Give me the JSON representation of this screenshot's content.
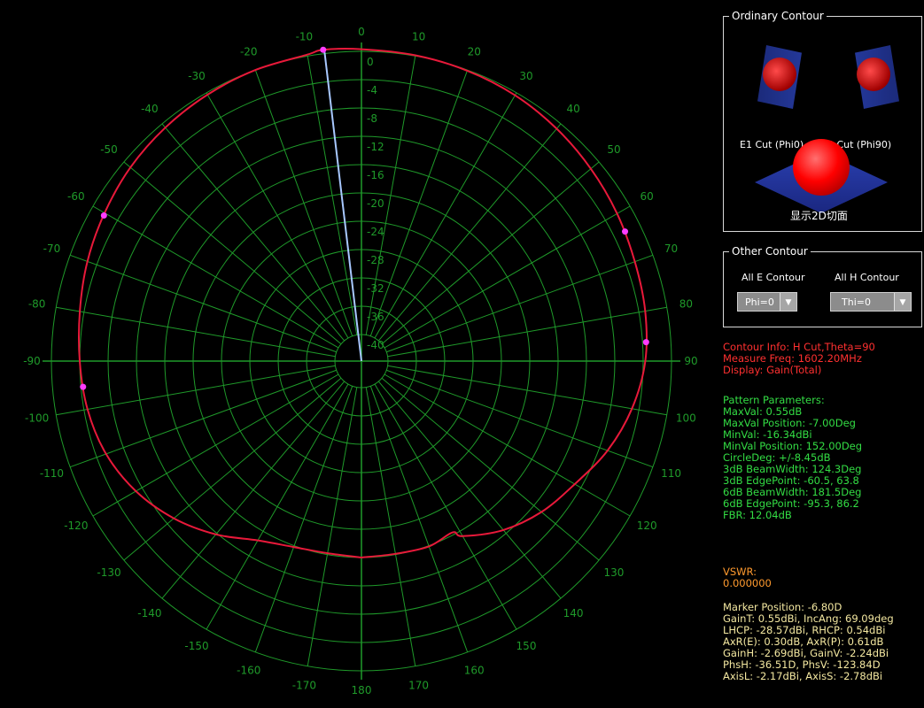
{
  "theme": {
    "grid": "#1f9a2a",
    "trace": "#e8193a",
    "marker": "#ff3cff",
    "needle": "#a8c8ff"
  },
  "polar": {
    "angle_labels": [
      {
        "deg": -170,
        "text": "-170"
      },
      {
        "deg": -160,
        "text": "-160"
      },
      {
        "deg": -150,
        "text": "-150"
      },
      {
        "deg": -140,
        "text": "-140"
      },
      {
        "deg": -130,
        "text": "-130"
      },
      {
        "deg": -120,
        "text": "-120"
      },
      {
        "deg": -110,
        "text": "-110"
      },
      {
        "deg": -100,
        "text": "-100"
      },
      {
        "deg": -90,
        "text": "-90"
      },
      {
        "deg": -80,
        "text": "-80"
      },
      {
        "deg": -70,
        "text": "-70"
      },
      {
        "deg": -60,
        "text": "-60"
      },
      {
        "deg": -50,
        "text": "-50"
      },
      {
        "deg": -40,
        "text": "-40"
      },
      {
        "deg": -30,
        "text": "-30"
      },
      {
        "deg": -20,
        "text": "-20"
      },
      {
        "deg": -10,
        "text": "-10"
      },
      {
        "deg": 0,
        "text": "0"
      },
      {
        "deg": 10,
        "text": "10"
      },
      {
        "deg": 20,
        "text": "20"
      },
      {
        "deg": 30,
        "text": "30"
      },
      {
        "deg": 40,
        "text": "40"
      },
      {
        "deg": 50,
        "text": "50"
      },
      {
        "deg": 60,
        "text": "60"
      },
      {
        "deg": 70,
        "text": "70"
      },
      {
        "deg": 80,
        "text": "80"
      },
      {
        "deg": 90,
        "text": "90"
      },
      {
        "deg": 100,
        "text": "100"
      },
      {
        "deg": 110,
        "text": "110"
      },
      {
        "deg": 120,
        "text": "120"
      },
      {
        "deg": 130,
        "text": "130"
      },
      {
        "deg": 140,
        "text": "140"
      },
      {
        "deg": 150,
        "text": "150"
      },
      {
        "deg": 160,
        "text": "160"
      },
      {
        "deg": 170,
        "text": "170"
      },
      {
        "deg": 180,
        "text": "180"
      }
    ],
    "radial_labels": [
      "0",
      "-4",
      "-8",
      "-12",
      "-16",
      "-20",
      "-24",
      "-28",
      "-32",
      "-36",
      "-40"
    ],
    "rmax_db": 0,
    "rmin_db": -40,
    "pattern": [
      {
        "deg": -180,
        "db": -16.0
      },
      {
        "deg": -170,
        "db": -16.2
      },
      {
        "deg": -160,
        "db": -15.8
      },
      {
        "deg": -150,
        "db": -14.5
      },
      {
        "deg": -140,
        "db": -11.8
      },
      {
        "deg": -130,
        "db": -9.2
      },
      {
        "deg": -120,
        "db": -7.0
      },
      {
        "deg": -110,
        "db": -5.4
      },
      {
        "deg": -100,
        "db": -4.5
      },
      {
        "deg": -90,
        "db": -4.0
      },
      {
        "deg": -80,
        "db": -3.4
      },
      {
        "deg": -70,
        "db": -2.6
      },
      {
        "deg": -60,
        "db": -1.9
      },
      {
        "deg": -50,
        "db": -1.2
      },
      {
        "deg": -40,
        "db": -0.7
      },
      {
        "deg": -30,
        "db": -0.3
      },
      {
        "deg": -20,
        "db": 0.0
      },
      {
        "deg": -10,
        "db": 0.2
      },
      {
        "deg": -7,
        "db": 0.55
      },
      {
        "deg": 0,
        "db": 0.3
      },
      {
        "deg": 10,
        "db": 0.1
      },
      {
        "deg": 20,
        "db": -0.1
      },
      {
        "deg": 30,
        "db": -0.4
      },
      {
        "deg": 40,
        "db": -0.9
      },
      {
        "deg": 50,
        "db": -1.5
      },
      {
        "deg": 60,
        "db": -2.1
      },
      {
        "deg": 70,
        "db": -2.7
      },
      {
        "deg": 80,
        "db": -3.1
      },
      {
        "deg": 90,
        "db": -3.7
      },
      {
        "deg": 100,
        "db": -5.0
      },
      {
        "deg": 110,
        "db": -6.8
      },
      {
        "deg": 120,
        "db": -9.0
      },
      {
        "deg": 130,
        "db": -10.6
      },
      {
        "deg": 140,
        "db": -12.6
      },
      {
        "deg": 150,
        "db": -15.2
      },
      {
        "deg": 152,
        "db": -16.34
      },
      {
        "deg": 160,
        "db": -15.9
      },
      {
        "deg": 170,
        "db": -16.1
      },
      {
        "deg": 180,
        "db": -16.0
      }
    ],
    "markers": [
      {
        "deg": -7,
        "db": 0.55
      },
      {
        "deg": -60.5,
        "db": -2.0
      },
      {
        "deg": 63.8,
        "db": -2.3
      },
      {
        "deg": -95.3,
        "db": -4.3
      },
      {
        "deg": 86.2,
        "db": -3.5
      }
    ],
    "needle_deg": -6.8
  },
  "ordinary_contour": {
    "title": "Ordinary Contour",
    "e1_label": "E1 Cut (Phi0)",
    "e2_label": "E2 Cut (Phi90)",
    "show3d_label": "显示2D切面"
  },
  "other_contour": {
    "title": "Other Contour",
    "all_e_label": "All E Contour",
    "all_h_label": "All H Contour",
    "phi_value": "Phi=0",
    "theta_value": "Thi=0"
  },
  "contour_info": {
    "line1": "Contour Info: H Cut,Theta=90",
    "line2": "Measure Freq: 1602.20MHz",
    "line3": "Display: Gain(Total)"
  },
  "pattern_params": {
    "heading": "Pattern Parameters:",
    "lines": [
      "MaxVal: 0.55dB",
      "MaxVal Position: -7.00Deg",
      "MinVal: -16.34dBi",
      "MinVal Position: 152.00Deg",
      "CircleDeg: +/-8.45dB",
      "3dB BeamWidth: 124.3Deg",
      "3dB EdgePoint: -60.5, 63.8",
      "6dB BeamWidth: 181.5Deg",
      "6dB EdgePoint: -95.3, 86.2",
      "FBR: 12.04dB"
    ]
  },
  "vswr": {
    "label": "VSWR:",
    "value": "0.000000"
  },
  "marker": {
    "lines": [
      "Marker Position: -6.80D",
      "GainT: 0.55dBi,  IncAng: 69.09deg",
      "LHCP: -28.57dBi,  RHCP: 0.54dBi",
      "AxR(E): 0.30dB, AxR(P): 0.61dB",
      "GainH: -2.69dBi,  GainV: -2.24dBi",
      "PhsH: -36.51D,  PhsV: -123.84D",
      "AxisL: -2.17dBi,  AxisS: -2.78dBi"
    ]
  }
}
